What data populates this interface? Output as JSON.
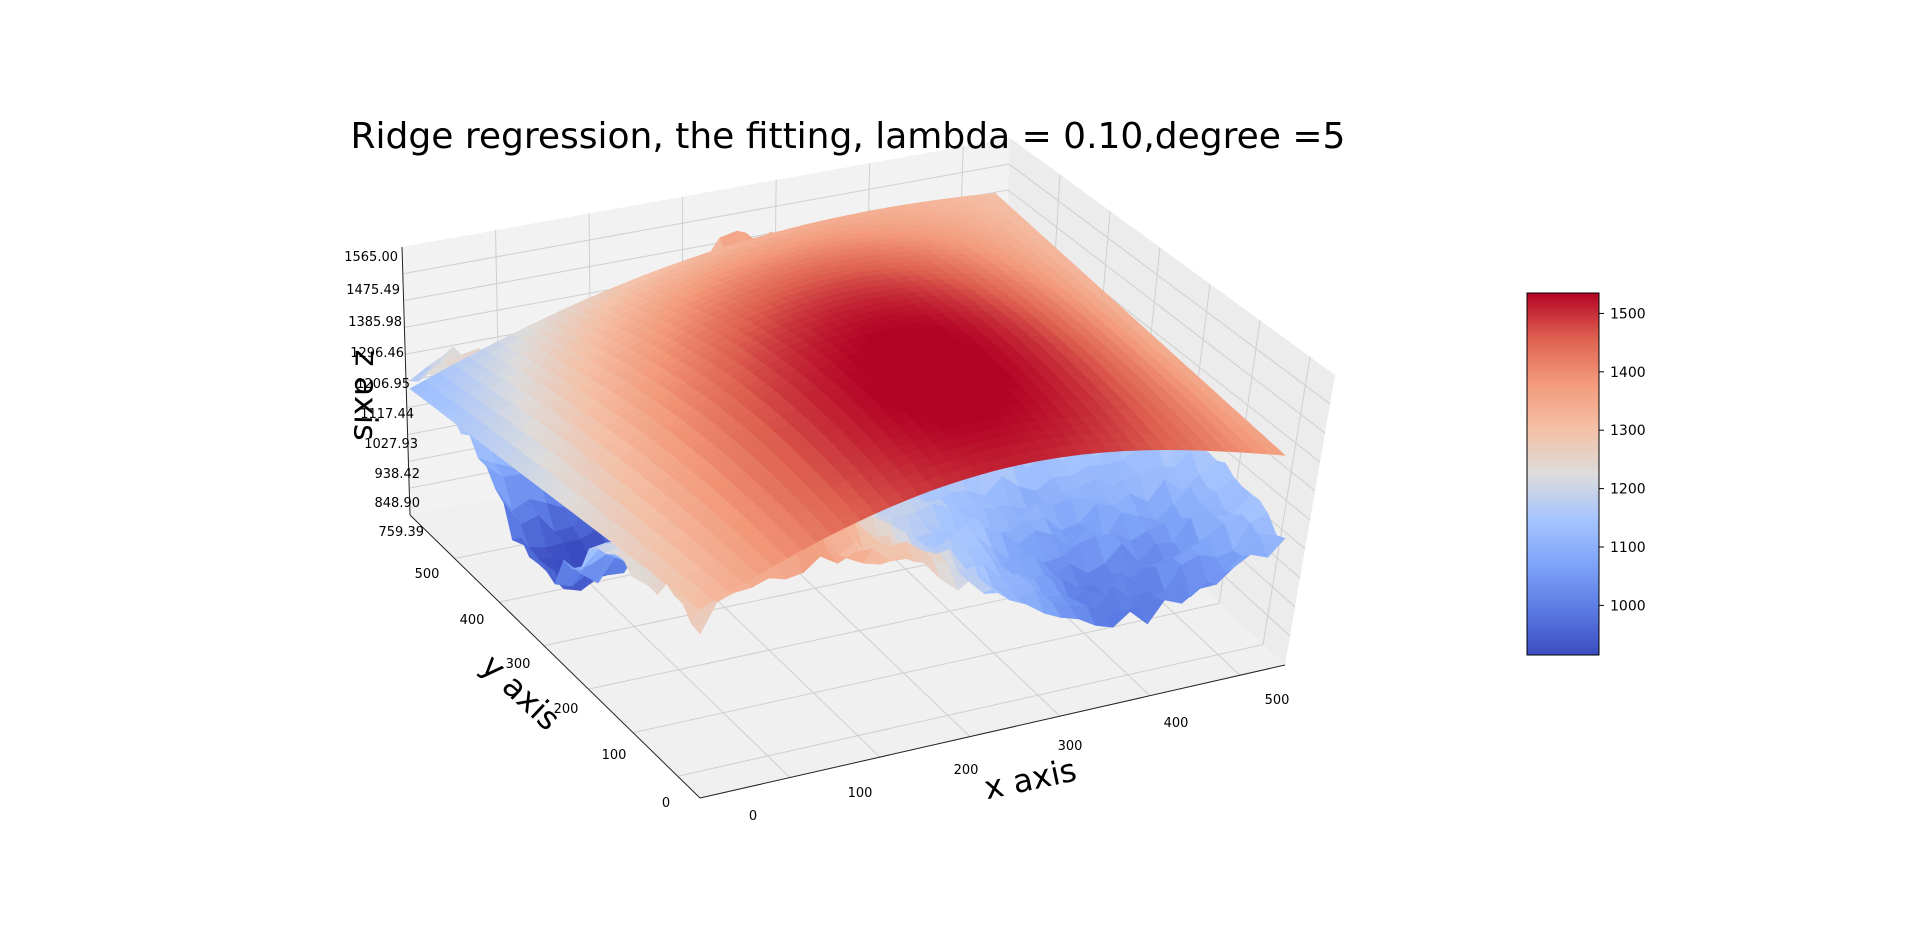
{
  "chart_data": {
    "type": "surface",
    "title": "Ridge regression, the fitting, lambda = 0.10,degree =5",
    "xlabel": "x axis",
    "ylabel": "y axis",
    "zlabel": "z axis",
    "xlim": [
      0,
      520
    ],
    "ylim": [
      0,
      520
    ],
    "zlim": [
      759.39,
      1565.0
    ],
    "x_ticks": [
      "0",
      "100",
      "200",
      "300",
      "400",
      "500"
    ],
    "y_ticks": [
      "0",
      "100",
      "200",
      "300",
      "400",
      "500"
    ],
    "z_ticks": [
      "759.39",
      "848.90",
      "938.42",
      "1027.93",
      "1117.44",
      "1206.95",
      "1296.46",
      "1385.98",
      "1475.49",
      "1565.00"
    ],
    "grid": true,
    "colormap": "coolwarm",
    "colorbar": {
      "range": [
        915,
        1535
      ],
      "ticks": [
        "1000",
        "1100",
        "1200",
        "1300",
        "1400",
        "1500"
      ]
    },
    "series": [
      {
        "kind": "raw-terrain-surface"
      },
      {
        "kind": "fitted-polynomial-surface"
      }
    ],
    "colors": {
      "low": "#3b4cc0",
      "mid": "#dddcdc",
      "high": "#b40426",
      "pane": "#f2f2f2",
      "grid": "#cccccc"
    }
  }
}
